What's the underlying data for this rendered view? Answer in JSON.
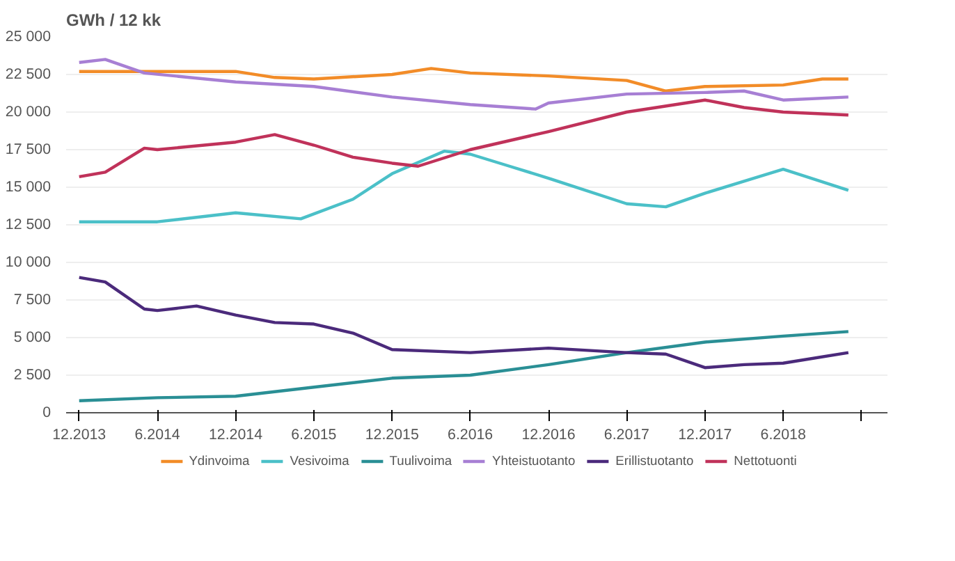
{
  "chart_data": {
    "type": "line",
    "ylabel": "GWh / 12 kk",
    "xlim": [
      "2013-11",
      "2019-02"
    ],
    "xticks": [
      {
        "value": "2013-12",
        "label": "12.2013"
      },
      {
        "value": "2014-06",
        "label": "6.2014"
      },
      {
        "value": "2014-12",
        "label": "12.2014"
      },
      {
        "value": "2015-06",
        "label": "6.2015"
      },
      {
        "value": "2015-12",
        "label": "12.2015"
      },
      {
        "value": "2016-06",
        "label": "6.2016"
      },
      {
        "value": "2016-12",
        "label": "12.2016"
      },
      {
        "value": "2017-06",
        "label": "6.2017"
      },
      {
        "value": "2017-12",
        "label": "12.2017"
      },
      {
        "value": "2018-06",
        "label": "6.2018"
      },
      {
        "value": "2018-12",
        "label": null
      }
    ],
    "ylim": [
      0,
      25000
    ],
    "yticks": [
      0,
      {
        "value": 2500,
        "label": "2 500"
      },
      {
        "value": 5000,
        "label": "5 000"
      },
      {
        "value": 7500,
        "label": "7 500"
      },
      {
        "value": 10000,
        "label": "10 000"
      },
      {
        "value": 12500,
        "label": "12 500"
      },
      {
        "value": 15000,
        "label": "15 000"
      },
      {
        "value": 17500,
        "label": "17 500"
      },
      {
        "value": 20000,
        "label": "20 000"
      },
      {
        "value": 22500,
        "label": "22 500"
      },
      {
        "value": 25000,
        "label": "25 000"
      }
    ],
    "grid": "y",
    "legend": "bottom",
    "marker": "none",
    "line_style": "solid",
    "series": [
      {
        "name": "Ydinvoima",
        "color": "#f28c28",
        "x": [
          "2013-12",
          "2014-06",
          "2014-12",
          "2015-03",
          "2015-06",
          "2015-12",
          "2016-03",
          "2016-06",
          "2016-12",
          "2017-06",
          "2017-09",
          "2017-12",
          "2018-06",
          "2018-09",
          "2018-11"
        ],
        "values": [
          22700,
          22700,
          22700,
          22300,
          22200,
          22500,
          22900,
          22600,
          22400,
          22100,
          21400,
          21700,
          21800,
          22200,
          22200
        ]
      },
      {
        "name": "Vesivoima",
        "color": "#4bc0c8",
        "x": [
          "2013-12",
          "2014-06",
          "2014-12",
          "2015-05",
          "2015-09",
          "2015-12",
          "2016-04",
          "2016-06",
          "2016-09",
          "2016-12",
          "2017-06",
          "2017-09",
          "2017-12",
          "2018-06",
          "2018-11"
        ],
        "values": [
          12700,
          12700,
          13300,
          12900,
          14200,
          15900,
          17400,
          17200,
          16400,
          15600,
          13900,
          13700,
          14600,
          16200,
          14800
        ]
      },
      {
        "name": "Tuulivoima",
        "color": "#2a8f95",
        "x": [
          "2013-12",
          "2014-06",
          "2014-12",
          "2015-06",
          "2015-12",
          "2016-06",
          "2016-12",
          "2017-06",
          "2017-12",
          "2018-06",
          "2018-11"
        ],
        "values": [
          800,
          1000,
          1100,
          1700,
          2300,
          2500,
          3200,
          4000,
          4700,
          5100,
          5400
        ]
      },
      {
        "name": "Yhteistuotanto",
        "color": "#a77fd4",
        "x": [
          "2013-12",
          "2014-02",
          "2014-05",
          "2014-12",
          "2015-06",
          "2015-12",
          "2016-06",
          "2016-11",
          "2016-12",
          "2017-06",
          "2017-12",
          "2018-03",
          "2018-06",
          "2018-11"
        ],
        "values": [
          23300,
          23500,
          22600,
          22000,
          21700,
          21000,
          20500,
          20200,
          20600,
          21200,
          21300,
          21400,
          20800,
          21000
        ]
      },
      {
        "name": "Erillistuotanto",
        "color": "#4b2a7b",
        "x": [
          "2013-12",
          "2014-02",
          "2014-05",
          "2014-06",
          "2014-09",
          "2014-12",
          "2015-03",
          "2015-06",
          "2015-09",
          "2015-12",
          "2016-06",
          "2016-12",
          "2017-06",
          "2017-09",
          "2017-12",
          "2018-03",
          "2018-06",
          "2018-11"
        ],
        "values": [
          9000,
          8700,
          6900,
          6800,
          7100,
          6500,
          6000,
          5900,
          5300,
          4200,
          4000,
          4300,
          4000,
          3900,
          3000,
          3200,
          3300,
          4000
        ]
      },
      {
        "name": "Nettotuonti",
        "color": "#c0325a",
        "x": [
          "2013-12",
          "2014-02",
          "2014-05",
          "2014-06",
          "2014-12",
          "2015-03",
          "2015-06",
          "2015-09",
          "2015-12",
          "2016-02",
          "2016-06",
          "2016-12",
          "2017-06",
          "2017-12",
          "2018-03",
          "2018-06",
          "2018-11"
        ],
        "values": [
          15700,
          16000,
          17600,
          17500,
          18000,
          18500,
          17800,
          17000,
          16600,
          16400,
          17500,
          18700,
          20000,
          20800,
          20300,
          20000,
          19800
        ]
      }
    ]
  }
}
